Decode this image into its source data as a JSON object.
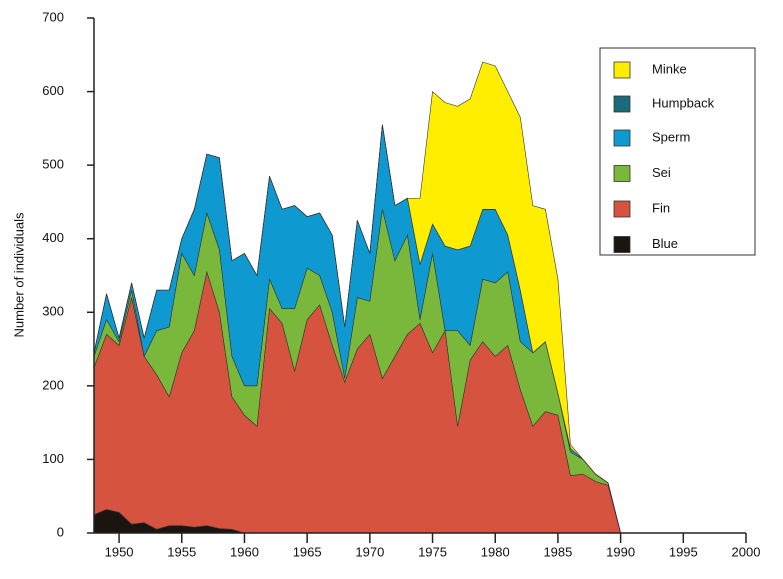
{
  "chart_data": {
    "type": "stacked_area",
    "y_label": "Number of individuals",
    "x": [
      1948,
      1949,
      1950,
      1951,
      1952,
      1953,
      1954,
      1955,
      1956,
      1957,
      1958,
      1959,
      1960,
      1961,
      1962,
      1963,
      1964,
      1965,
      1966,
      1967,
      1968,
      1969,
      1970,
      1971,
      1972,
      1973,
      1974,
      1975,
      1976,
      1977,
      1978,
      1979,
      1980,
      1981,
      1982,
      1983,
      1984,
      1985,
      1986,
      1987,
      1988,
      1989,
      1990
    ],
    "series": [
      {
        "name": "Blue",
        "color": "#1a1511",
        "values": [
          25,
          32,
          28,
          12,
          14,
          5,
          10,
          10,
          8,
          10,
          6,
          5,
          0,
          0,
          0,
          0,
          0,
          0,
          0,
          0,
          0,
          0,
          0,
          0,
          0,
          0,
          0,
          0,
          0,
          0,
          0,
          0,
          0,
          0,
          0,
          0,
          0,
          0,
          0,
          0,
          0,
          0,
          0
        ]
      },
      {
        "name": "Fin",
        "color": "#d6533f",
        "values": [
          200,
          238,
          227,
          308,
          226,
          210,
          175,
          235,
          267,
          345,
          294,
          180,
          160,
          145,
          305,
          285,
          220,
          290,
          310,
          255,
          205,
          250,
          270,
          210,
          240,
          270,
          285,
          245,
          275,
          145,
          235,
          260,
          240,
          255,
          195,
          145,
          165,
          160,
          78,
          80,
          70,
          65,
          0
        ]
      },
      {
        "name": "Sei",
        "color": "#7ab83c",
        "values": [
          15,
          20,
          5,
          10,
          0,
          60,
          95,
          135,
          75,
          80,
          85,
          55,
          40,
          55,
          40,
          20,
          85,
          70,
          40,
          45,
          5,
          70,
          45,
          230,
          130,
          135,
          5,
          135,
          0,
          130,
          20,
          85,
          100,
          100,
          65,
          100,
          95,
          30,
          32,
          20,
          10,
          3,
          0
        ]
      },
      {
        "name": "Sperm",
        "color": "#0e9ad1",
        "values": [
          5,
          35,
          5,
          10,
          25,
          55,
          50,
          20,
          90,
          80,
          125,
          130,
          180,
          150,
          140,
          135,
          140,
          70,
          85,
          105,
          70,
          105,
          65,
          115,
          75,
          50,
          75,
          40,
          115,
          110,
          135,
          95,
          100,
          50,
          70,
          0,
          0,
          0,
          5,
          0,
          0,
          0,
          0
        ]
      },
      {
        "name": "Humpback",
        "color": "#1a6a7a",
        "values": [
          0,
          0,
          0,
          0,
          0,
          0,
          0,
          0,
          0,
          0,
          0,
          0,
          0,
          0,
          0,
          0,
          0,
          0,
          0,
          0,
          0,
          0,
          0,
          0,
          0,
          0,
          0,
          0,
          0,
          0,
          0,
          0,
          0,
          0,
          0,
          0,
          0,
          0,
          0,
          0,
          0,
          0,
          0
        ]
      },
      {
        "name": "Minke",
        "color": "#ffee00",
        "values": [
          0,
          0,
          0,
          0,
          0,
          0,
          0,
          0,
          0,
          0,
          0,
          0,
          0,
          0,
          0,
          0,
          0,
          0,
          0,
          0,
          0,
          0,
          0,
          0,
          0,
          0,
          90,
          180,
          195,
          195,
          200,
          200,
          195,
          195,
          235,
          200,
          180,
          155,
          5,
          0,
          0,
          0,
          0
        ]
      }
    ],
    "xlim": [
      1948,
      2000
    ],
    "xticks": [
      1950,
      1955,
      1960,
      1965,
      1970,
      1975,
      1980,
      1985,
      1990,
      1995,
      2000
    ],
    "ylim": [
      0,
      700
    ],
    "yticks": [
      0,
      100,
      200,
      300,
      400,
      500,
      600,
      700
    ],
    "legend": "upper right"
  }
}
